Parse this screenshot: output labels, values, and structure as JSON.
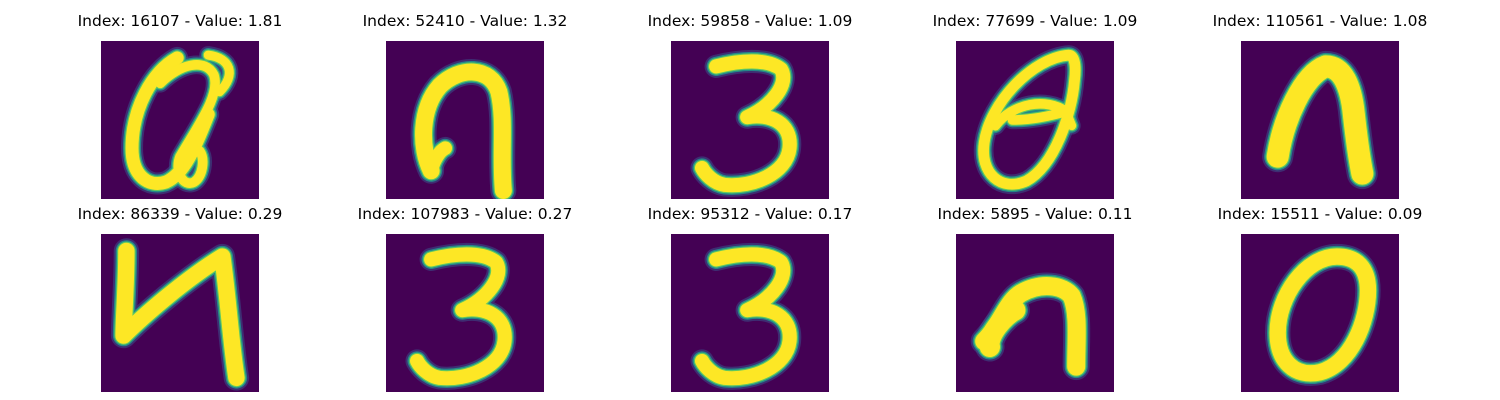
{
  "figure": {
    "colors": {
      "background": "#440154",
      "low": "#3b528b",
      "mid": "#21918c",
      "high": "#5ec962",
      "peak": "#fde725"
    },
    "panels": [
      {
        "index": "16107",
        "value": "1.81",
        "title": "Index: 16107 - Value: 1.81",
        "depicts": "handwritten-glyph-a"
      },
      {
        "index": "52410",
        "value": "1.32",
        "title": "Index: 52410 - Value: 1.32",
        "depicts": "handwritten-glyph-hook"
      },
      {
        "index": "59858",
        "value": "1.09",
        "title": "Index: 59858 - Value: 1.09",
        "depicts": "handwritten-digit-3"
      },
      {
        "index": "77699",
        "value": "1.09",
        "title": "Index: 77699 - Value: 1.09",
        "depicts": "handwritten-glyph-loop"
      },
      {
        "index": "110561",
        "value": "1.08",
        "title": "Index: 110561 - Value: 1.08",
        "depicts": "handwritten-glyph-n"
      },
      {
        "index": "86339",
        "value": "0.29",
        "title": "Index: 86339 - Value: 0.29",
        "depicts": "handwritten-glyph-n-zigzag"
      },
      {
        "index": "107983",
        "value": "0.27",
        "title": "Index: 107983 - Value: 0.27",
        "depicts": "handwritten-digit-3"
      },
      {
        "index": "95312",
        "value": "0.17",
        "title": "Index: 95312 - Value: 0.17",
        "depicts": "handwritten-digit-3"
      },
      {
        "index": "5895",
        "value": "0.11",
        "title": "Index: 5895 - Value: 0.11",
        "depicts": "handwritten-glyph-n-blob"
      },
      {
        "index": "15511",
        "value": "0.09",
        "title": "Index: 15511 - Value: 0.09",
        "depicts": "handwritten-digit-0"
      }
    ]
  }
}
